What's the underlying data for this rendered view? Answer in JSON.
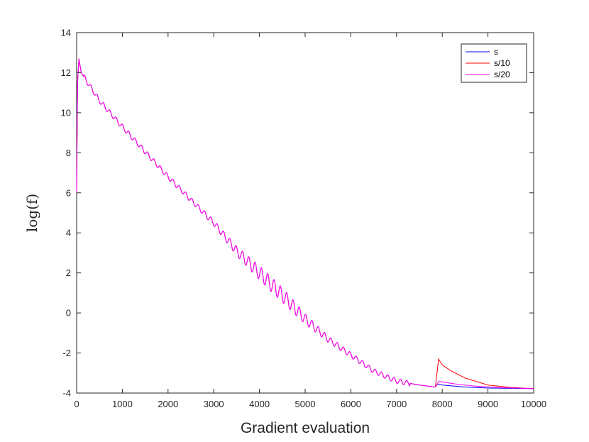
{
  "chart_data": {
    "type": "line",
    "title": "",
    "xlabel": "Gradient evaluation",
    "ylabel": "log(f)",
    "xlim": [
      0,
      10000
    ],
    "ylim": [
      -4,
      14
    ],
    "xticks": [
      0,
      1000,
      2000,
      3000,
      4000,
      5000,
      6000,
      7000,
      8000,
      9000,
      10000
    ],
    "yticks": [
      -4,
      -2,
      0,
      2,
      4,
      6,
      8,
      10,
      12,
      14
    ],
    "xtick_labels": [
      "0",
      "1000",
      "2000",
      "3000",
      "4000",
      "5000",
      "6000",
      "7000",
      "8000",
      "9000",
      "10000"
    ],
    "ytick_labels": [
      "-4",
      "-2",
      "0",
      "2",
      "4",
      "6",
      "8",
      "10",
      "12",
      "14"
    ],
    "grid": false,
    "legend_position": "top-right",
    "series": [
      {
        "name": "s",
        "color": "#0000ff",
        "points": [
          [
            0,
            6.0
          ],
          [
            20,
            11.5
          ],
          [
            50,
            12.7
          ],
          [
            100,
            12.0
          ],
          [
            500,
            10.6
          ],
          [
            1000,
            9.3
          ],
          [
            2000,
            6.8
          ],
          [
            3000,
            4.5
          ],
          [
            3500,
            3.1
          ],
          [
            4000,
            2.0
          ],
          [
            4500,
            0.9
          ],
          [
            5000,
            -0.3
          ],
          [
            5500,
            -1.3
          ],
          [
            6000,
            -2.1
          ],
          [
            6500,
            -2.9
          ],
          [
            7000,
            -3.4
          ],
          [
            7500,
            -3.6
          ],
          [
            7850,
            -3.7
          ],
          [
            7900,
            -3.55
          ],
          [
            8000,
            -3.6
          ],
          [
            8500,
            -3.7
          ],
          [
            9000,
            -3.75
          ],
          [
            10000,
            -3.78
          ]
        ]
      },
      {
        "name": "s/10",
        "color": "#ff0000",
        "points": [
          [
            0,
            6.0
          ],
          [
            20,
            11.5
          ],
          [
            50,
            12.7
          ],
          [
            100,
            12.0
          ],
          [
            500,
            10.6
          ],
          [
            1000,
            9.3
          ],
          [
            2000,
            6.8
          ],
          [
            3000,
            4.5
          ],
          [
            3500,
            3.1
          ],
          [
            4000,
            2.0
          ],
          [
            4500,
            0.9
          ],
          [
            5000,
            -0.3
          ],
          [
            5500,
            -1.3
          ],
          [
            6000,
            -2.1
          ],
          [
            6500,
            -2.9
          ],
          [
            7000,
            -3.4
          ],
          [
            7500,
            -3.6
          ],
          [
            7850,
            -3.7
          ],
          [
            7920,
            -2.3
          ],
          [
            8000,
            -2.6
          ],
          [
            8200,
            -2.9
          ],
          [
            8500,
            -3.25
          ],
          [
            9000,
            -3.6
          ],
          [
            9500,
            -3.72
          ],
          [
            10000,
            -3.78
          ]
        ]
      },
      {
        "name": "s/20",
        "color": "#ff00ff",
        "points": [
          [
            0,
            6.0
          ],
          [
            20,
            11.5
          ],
          [
            50,
            12.7
          ],
          [
            100,
            12.0
          ],
          [
            500,
            10.6
          ],
          [
            1000,
            9.3
          ],
          [
            2000,
            6.8
          ],
          [
            3000,
            4.5
          ],
          [
            3500,
            3.1
          ],
          [
            4000,
            2.0
          ],
          [
            4500,
            0.9
          ],
          [
            5000,
            -0.3
          ],
          [
            5500,
            -1.3
          ],
          [
            6000,
            -2.1
          ],
          [
            6500,
            -2.9
          ],
          [
            7000,
            -3.4
          ],
          [
            7500,
            -3.6
          ],
          [
            7850,
            -3.7
          ],
          [
            7930,
            -3.4
          ],
          [
            8000,
            -3.45
          ],
          [
            8300,
            -3.55
          ],
          [
            8700,
            -3.65
          ],
          [
            9200,
            -3.72
          ],
          [
            10000,
            -3.78
          ]
        ]
      }
    ]
  }
}
